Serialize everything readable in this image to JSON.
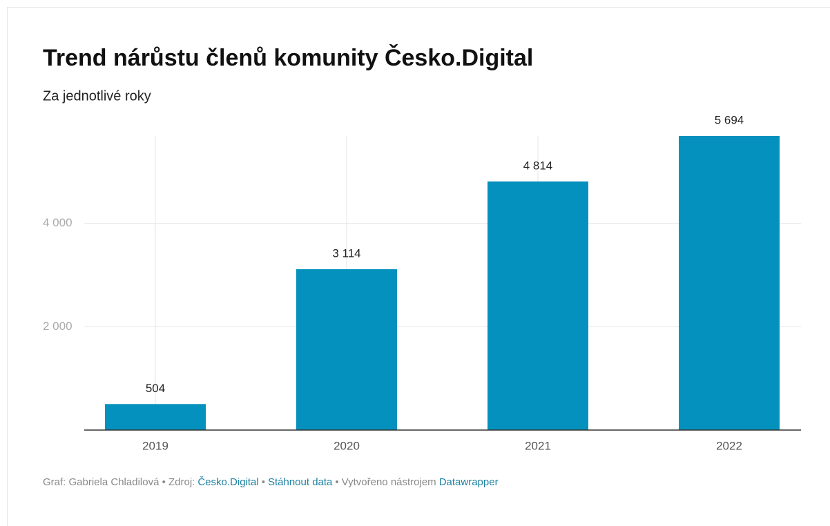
{
  "chart_data": {
    "type": "bar",
    "title": "Trend nárůstu členů komunity Česko.Digital",
    "subtitle": "Za jednotlivé roky",
    "categories": [
      "2019",
      "2020",
      "2021",
      "2022"
    ],
    "values": [
      504,
      3114,
      4814,
      5694
    ],
    "value_labels": [
      "504",
      "3 114",
      "4 814",
      "5 694"
    ],
    "color": "#0591bd",
    "ylim": [
      0,
      5694
    ],
    "yticks": [
      {
        "value": 2000,
        "label": "2 000"
      },
      {
        "value": 4000,
        "label": "4 000"
      }
    ],
    "grid": true
  },
  "footer": {
    "prefix": "Graf: Gabriela Chladilová • Zdroj:",
    "source_link": "Česko.Digital",
    "separator": "•",
    "download_link": "Stáhnout data",
    "credit": "Vytvořeno nástrojem",
    "tool_link": "Datawrapper"
  }
}
